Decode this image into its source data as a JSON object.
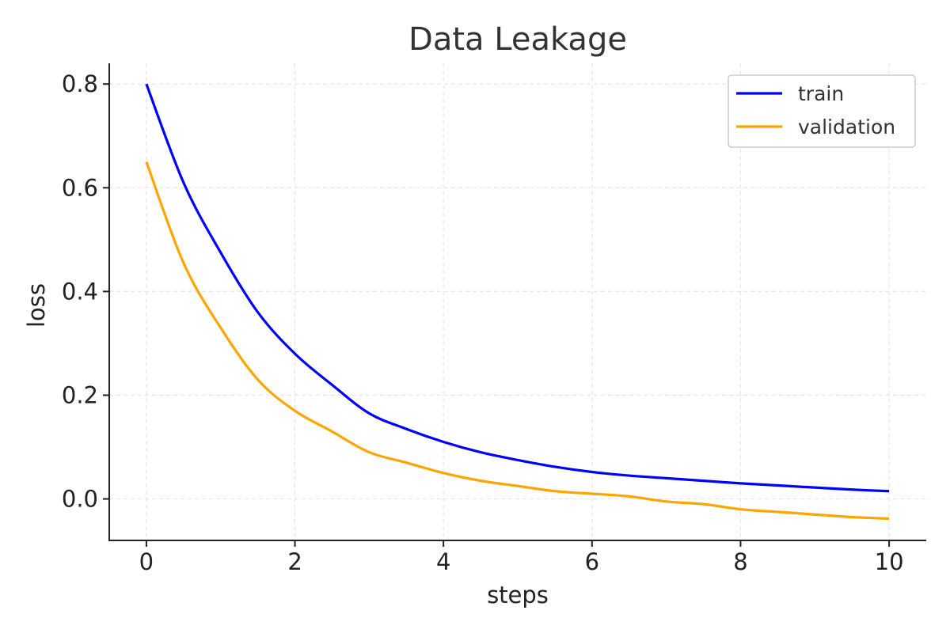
{
  "chart_data": {
    "type": "line",
    "title": "Data Leakage",
    "xlabel": "steps",
    "ylabel": "loss",
    "xlim": [
      -0.5,
      10.5
    ],
    "ylim": [
      -0.08,
      0.84
    ],
    "xticks": [
      0,
      2,
      4,
      6,
      8,
      10
    ],
    "xtick_labels": [
      "0",
      "2",
      "4",
      "6",
      "8",
      "10"
    ],
    "yticks": [
      0.0,
      0.2,
      0.4,
      0.6,
      0.8
    ],
    "ytick_labels": [
      "0.0",
      "0.2",
      "0.4",
      "0.6",
      "0.8"
    ],
    "grid": true,
    "legend_position": "top-right",
    "x": [
      0,
      0.5,
      1,
      1.5,
      2,
      2.5,
      3,
      3.5,
      4,
      4.5,
      5,
      5.5,
      6,
      6.5,
      7,
      7.5,
      8,
      8.5,
      9,
      9.5,
      10
    ],
    "series": [
      {
        "name": "train",
        "color": "#0000ff",
        "values": [
          0.8,
          0.61,
          0.475,
          0.36,
          0.28,
          0.22,
          0.165,
          0.135,
          0.11,
          0.09,
          0.075,
          0.062,
          0.052,
          0.045,
          0.04,
          0.035,
          0.03,
          0.026,
          0.022,
          0.018,
          0.015
        ]
      },
      {
        "name": "validation",
        "color": "#ffa500",
        "values": [
          0.65,
          0.455,
          0.33,
          0.23,
          0.17,
          0.13,
          0.09,
          0.07,
          0.05,
          0.035,
          0.025,
          0.015,
          0.01,
          0.005,
          -0.005,
          -0.01,
          -0.02,
          -0.025,
          -0.03,
          -0.035,
          -0.038
        ]
      }
    ]
  }
}
